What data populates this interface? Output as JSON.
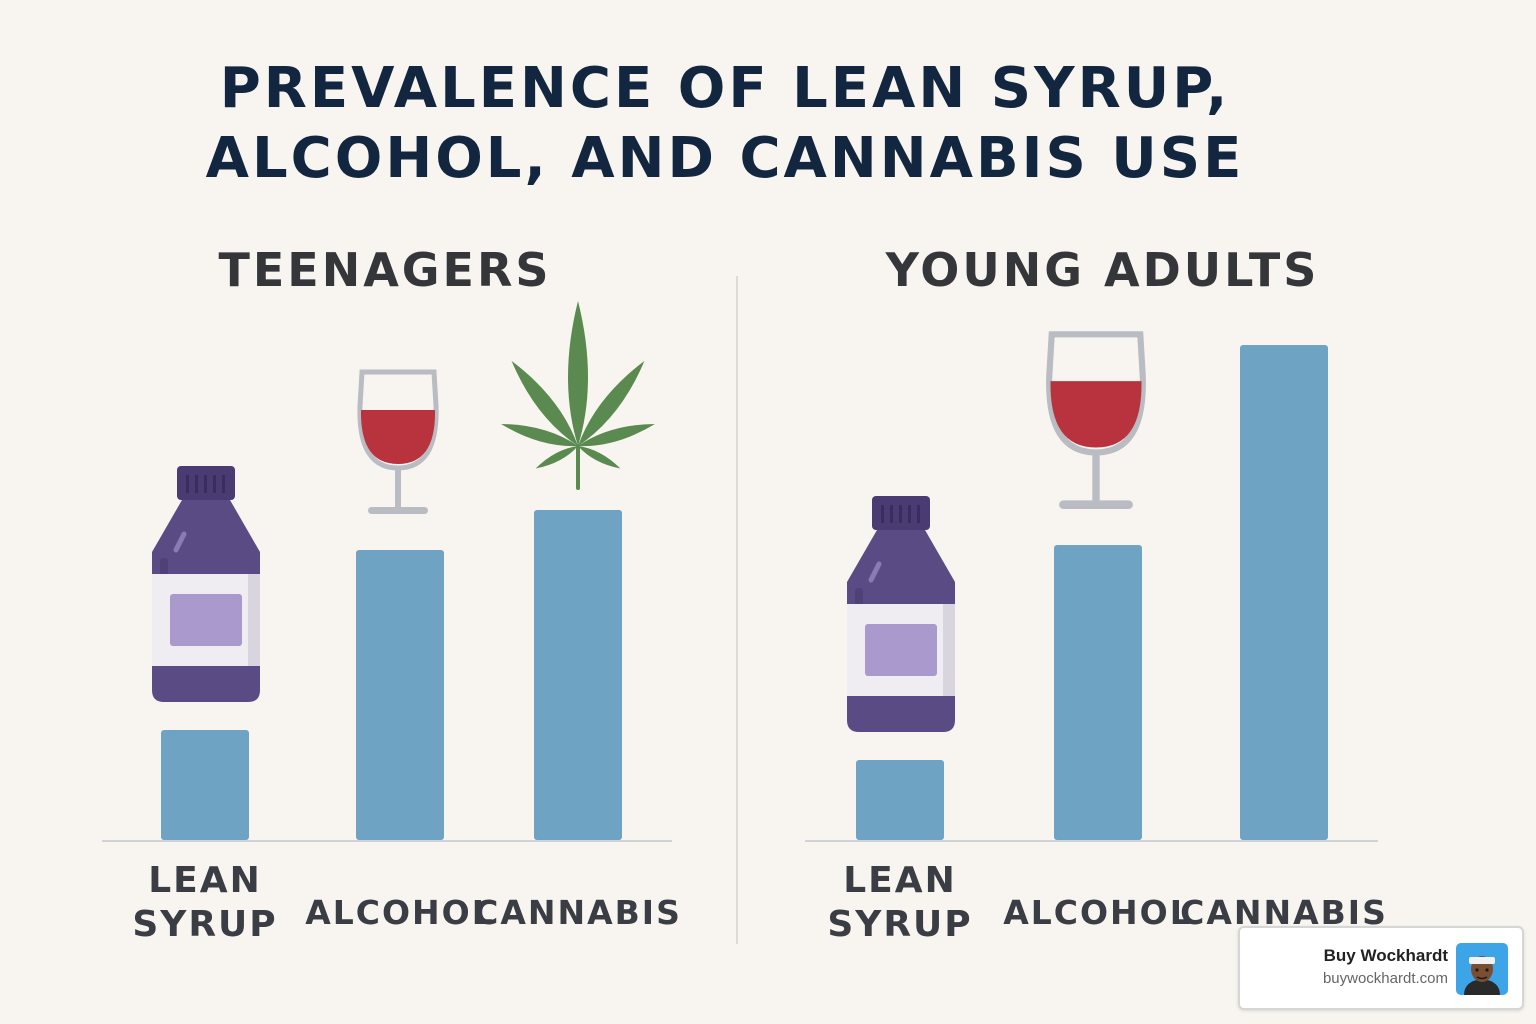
{
  "title": {
    "line1": "PREVALENCE OF LEAN SYRUP,",
    "line2": "ALCOHOL, AND CANNABIS USE"
  },
  "colors": {
    "background": "#f8f5f0",
    "title": "#13263f",
    "bar": "#6fa3c4",
    "bottle": "#5a4b85",
    "wine": "#b8333e",
    "leaf": "#5a8a4f"
  },
  "chart_data": [
    {
      "type": "bar",
      "title": "TEENAGERS",
      "categories": [
        "LEAN SYRUP",
        "ALCOHOL",
        "CANNABIS"
      ],
      "category_lines": [
        [
          "LEAN",
          "SYRUP"
        ],
        [
          "ALCOHOL"
        ],
        [
          "CANNABIS"
        ]
      ],
      "category_icons": [
        "syrup-bottle-icon",
        "wine-glass-icon",
        "cannabis-leaf-icon"
      ],
      "values": [
        22,
        58,
        66
      ],
      "ylim": [
        0,
        100
      ],
      "grid": false
    },
    {
      "type": "bar",
      "title": "YOUNG ADULTS",
      "categories": [
        "LEAN SYRUP",
        "ALCOHOL",
        "CANNABIS"
      ],
      "category_lines": [
        [
          "LEAN",
          "SYRUP"
        ],
        [
          "ALCOHOL"
        ],
        [
          "CANNABIS"
        ]
      ],
      "category_icons": [
        "syrup-bottle-icon",
        "wine-glass-icon",
        "none"
      ],
      "values": [
        16,
        59,
        99
      ],
      "ylim": [
        0,
        100
      ],
      "grid": false
    }
  ],
  "badge": {
    "name": "Buy Wockhardt",
    "url": "buywockhardt.com",
    "avatar_icon": "avatar-icon"
  }
}
